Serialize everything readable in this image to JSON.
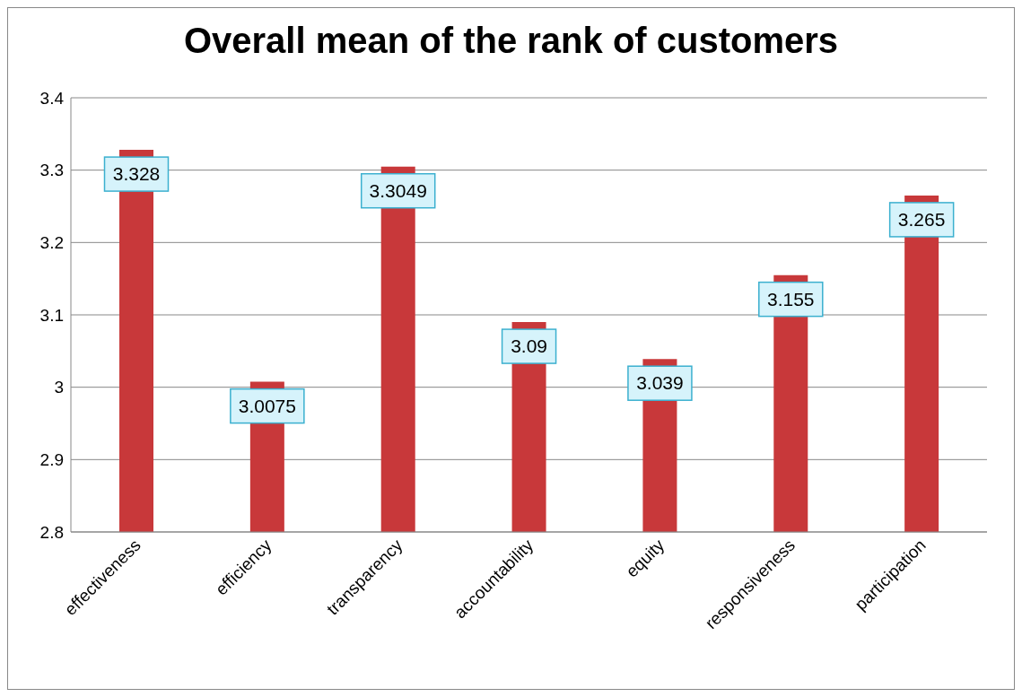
{
  "chart_data": {
    "type": "bar",
    "title": "Overall mean of the rank of customers",
    "categories": [
      "effectiveness",
      "efficiency",
      "transparency",
      "accountability",
      "equity",
      "responsiveness",
      "participation"
    ],
    "values": [
      3.328,
      3.0075,
      3.3049,
      3.09,
      3.039,
      3.155,
      3.265
    ],
    "color": "#c8383a",
    "ylim": [
      2.8,
      3.4
    ],
    "yticks": [
      2.8,
      2.9,
      3,
      3.1,
      3.2,
      3.3,
      3.4
    ],
    "grid": "y",
    "data_labels": true
  }
}
